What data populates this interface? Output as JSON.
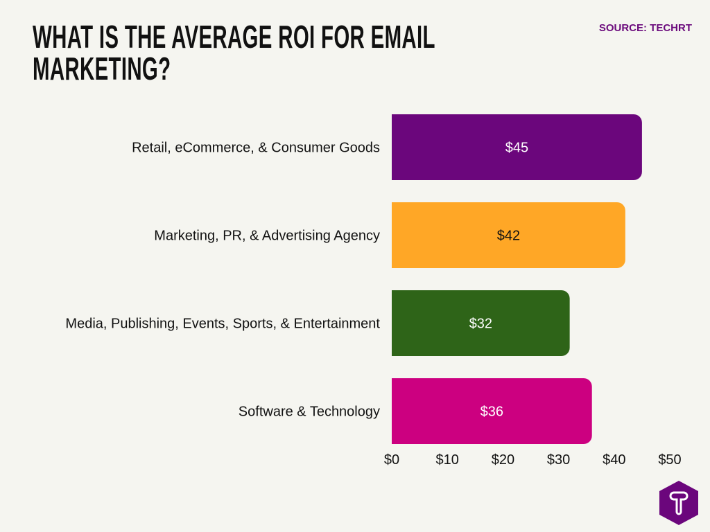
{
  "title_lines": [
    "WHAT IS THE AVERAGE ROI FOR EMAIL",
    "MARKETING?"
  ],
  "source": "SOURCE: TECHRT",
  "logo_text": "T",
  "chart_data": {
    "type": "bar",
    "orientation": "horizontal",
    "title": "WHAT IS THE AVERAGE ROI FOR EMAIL MARKETING?",
    "categories": [
      "Retail, eCommerce, & Consumer Goods",
      "Marketing, PR, & Advertising Agency",
      "Media, Publishing, Events, Sports, & Entertainment",
      "Software & Technology"
    ],
    "values": [
      45,
      42,
      32,
      36
    ],
    "data_labels": [
      "$45",
      "$42",
      "$32",
      "$36"
    ],
    "colors": [
      "#6b067c",
      "#ffa726",
      "#2e6418",
      "#cc0080"
    ],
    "label_colors": [
      "#ffffff",
      "#111111",
      "#ffffff",
      "#ffffff"
    ],
    "xlim": [
      0,
      50
    ],
    "xticks": [
      0,
      10,
      20,
      30,
      40,
      50
    ],
    "xtick_labels": [
      "$0",
      "$10",
      "$20",
      "$30",
      "$40",
      "$50"
    ],
    "grid": false,
    "xlabel": "",
    "ylabel": ""
  }
}
